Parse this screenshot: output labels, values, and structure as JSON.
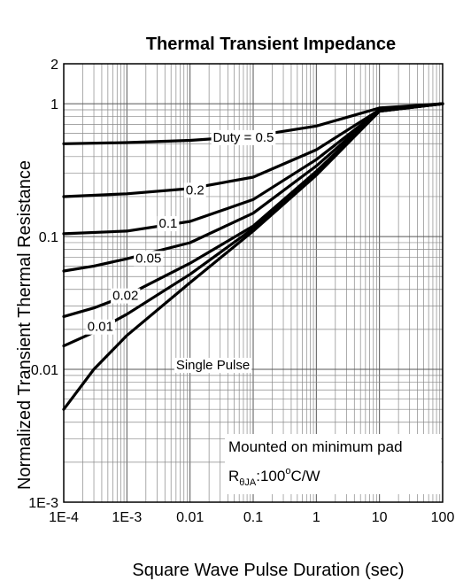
{
  "chart_data": {
    "type": "line",
    "title": "Thermal Transient Impedance",
    "xlabel": "Square Wave Pulse Duration (sec)",
    "ylabel": "Normalized Transient Thermal Resistance",
    "x_scale": "log",
    "y_scale": "log",
    "xlim": [
      0.0001,
      100
    ],
    "ylim": [
      0.001,
      2
    ],
    "x_ticks": [
      0.0001,
      0.001,
      0.01,
      0.1,
      1,
      10,
      100
    ],
    "x_tick_labels": [
      "1E-4",
      "1E-3",
      "0.01",
      "0.1",
      "1",
      "10",
      "100"
    ],
    "y_ticks": [
      0.001,
      0.01,
      0.1,
      1,
      2
    ],
    "y_tick_labels": [
      "1E-3",
      "0.01",
      "0.1",
      "1",
      "2"
    ],
    "grid": true,
    "series": [
      {
        "name": "0.5",
        "label": "Duty =  0.5",
        "x": [
          0.0001,
          0.001,
          0.01,
          0.1,
          1,
          10,
          100
        ],
        "y": [
          0.5,
          0.51,
          0.53,
          0.57,
          0.68,
          0.93,
          1.0
        ]
      },
      {
        "name": "0.2",
        "label": "0.2",
        "x": [
          0.0001,
          0.001,
          0.01,
          0.1,
          1,
          10,
          100
        ],
        "y": [
          0.2,
          0.21,
          0.23,
          0.28,
          0.45,
          0.9,
          1.0
        ]
      },
      {
        "name": "0.1",
        "label": "0.1",
        "x": [
          0.0001,
          0.001,
          0.01,
          0.1,
          1,
          10,
          100
        ],
        "y": [
          0.105,
          0.11,
          0.13,
          0.19,
          0.38,
          0.89,
          1.0
        ]
      },
      {
        "name": "0.05",
        "label": "0.05",
        "x": [
          0.0001,
          0.0003,
          0.001,
          0.01,
          0.1,
          1,
          10,
          100
        ],
        "y": [
          0.055,
          0.06,
          0.068,
          0.09,
          0.15,
          0.34,
          0.89,
          1.0
        ]
      },
      {
        "name": "0.02",
        "label": "0.02",
        "x": [
          0.0001,
          0.0003,
          0.001,
          0.01,
          0.1,
          1,
          10,
          100
        ],
        "y": [
          0.025,
          0.029,
          0.036,
          0.063,
          0.12,
          0.31,
          0.88,
          1.0
        ]
      },
      {
        "name": "0.01",
        "label": "0.01",
        "x": [
          0.0001,
          0.0003,
          0.001,
          0.01,
          0.1,
          1,
          10,
          100
        ],
        "y": [
          0.015,
          0.019,
          0.026,
          0.052,
          0.115,
          0.3,
          0.88,
          1.0
        ]
      },
      {
        "name": "Single Pulse",
        "label": "Single Pulse",
        "x": [
          0.0001,
          0.0003,
          0.001,
          0.01,
          0.1,
          1,
          10,
          100
        ],
        "y": [
          0.005,
          0.01,
          0.018,
          0.045,
          0.11,
          0.29,
          0.88,
          1.0
        ]
      }
    ],
    "annotation": {
      "line1": "Mounted on minimum pad",
      "line2_prefix": "R",
      "line2_sub": "θJA",
      "line2_value": ":100",
      "line2_sup": "o",
      "line2_unit": "C/W"
    }
  }
}
